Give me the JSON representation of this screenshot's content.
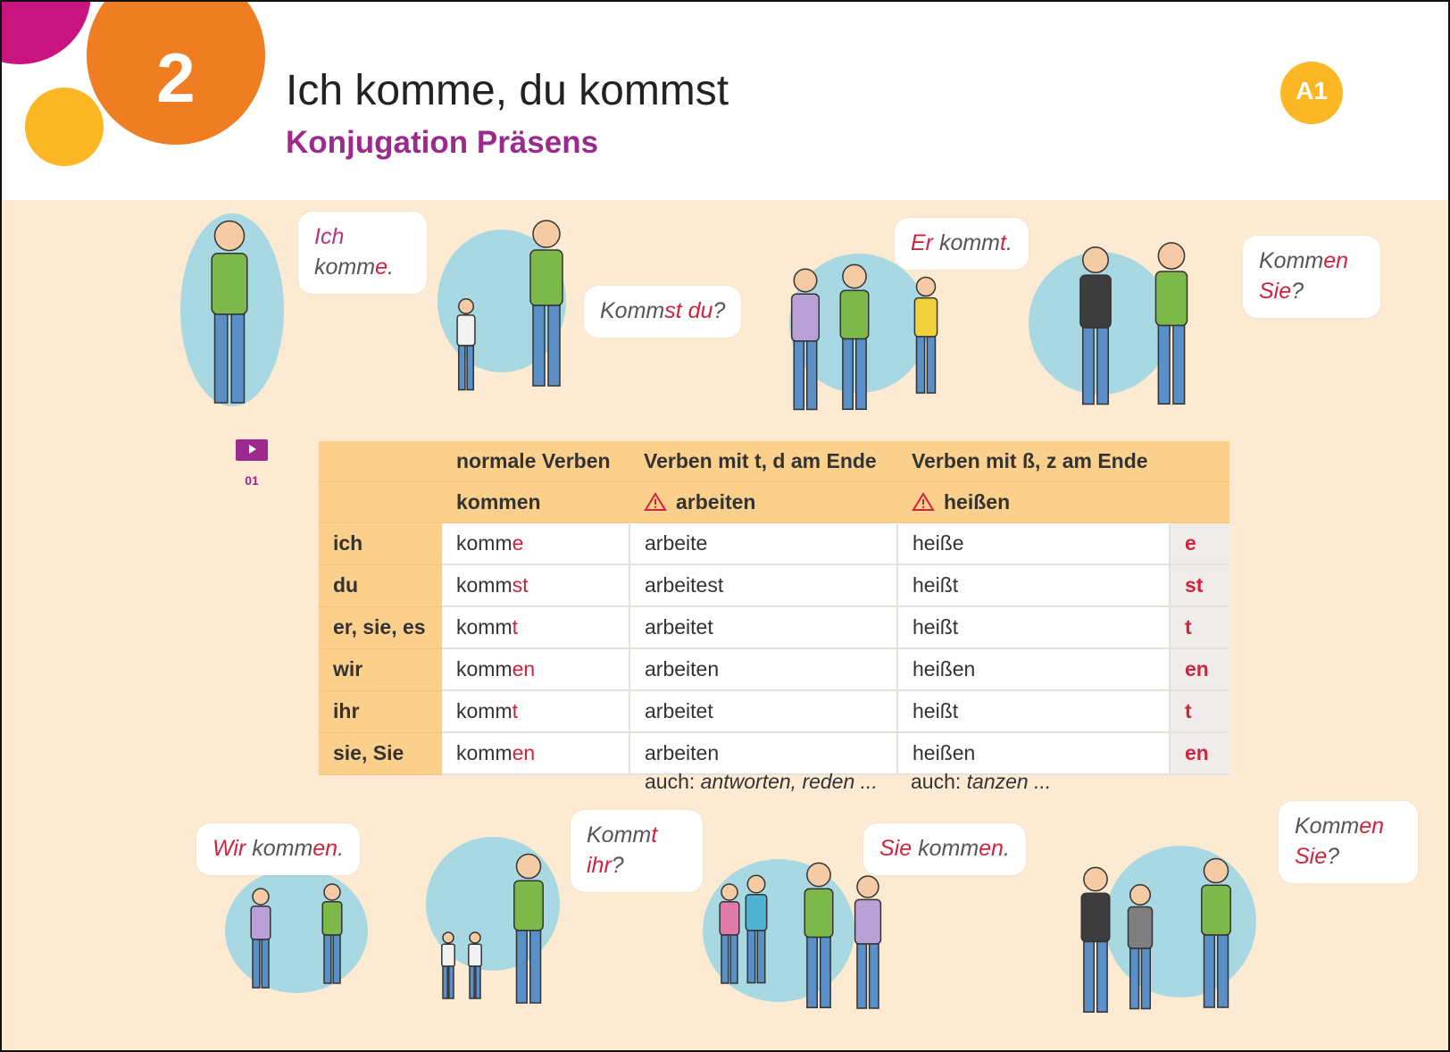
{
  "header": {
    "number": "2",
    "title": "Ich komme, du kommst",
    "subtitle": "Konjugation Präsens",
    "level": "A1"
  },
  "media": {
    "label": "01"
  },
  "bubbles": [
    {
      "parts": [
        {
          "text": "Ich",
          "color": "#b8327f"
        },
        " komm",
        {
          "text": "e",
          "color": "#d0243c"
        },
        "."
      ]
    },
    {
      "parts": [
        "Komm",
        {
          "text": "st",
          "color": "#d0243c"
        },
        " ",
        {
          "text": "du",
          "color": "#d0243c"
        },
        "?"
      ]
    },
    {
      "parts": [
        {
          "text": "Er",
          "color": "#d0243c"
        },
        " komm",
        {
          "text": "t",
          "color": "#d0243c"
        },
        "."
      ]
    },
    {
      "parts": [
        "Komm",
        {
          "text": "en",
          "color": "#d0243c"
        },
        " ",
        {
          "text": "Sie",
          "color": "#d0243c"
        },
        "?"
      ]
    },
    {
      "parts": [
        {
          "text": "Wir",
          "color": "#d0243c"
        },
        " komm",
        {
          "text": "en",
          "color": "#d0243c"
        },
        "."
      ]
    },
    {
      "parts": [
        "Komm",
        {
          "text": "t",
          "color": "#d0243c"
        },
        " ",
        {
          "text": "ihr",
          "color": "#d0243c"
        },
        "?"
      ]
    },
    {
      "parts": [
        {
          "text": "Sie",
          "color": "#d0243c"
        },
        " komm",
        {
          "text": "en",
          "color": "#d0243c"
        },
        "."
      ]
    },
    {
      "parts": [
        "Komm",
        {
          "text": "en",
          "color": "#d0243c"
        },
        " ",
        {
          "text": "Sie",
          "color": "#d0243c"
        },
        "?"
      ]
    }
  ],
  "table": {
    "header": [
      [
        "",
        "normale Verben",
        "Verben mit t, d am Ende",
        "Verben mit ß, z am Ende",
        ""
      ],
      [
        "",
        "kommen",
        "arbeiten",
        "heißen",
        ""
      ]
    ],
    "rows": [
      [
        "ich",
        [
          "komm",
          {
            "text": "e",
            "color": "#d0243c"
          }
        ],
        "arbeite",
        "heiße",
        "e"
      ],
      [
        "du",
        [
          "komm",
          {
            "text": "st",
            "color": "#d0243c"
          }
        ],
        "arbeitest",
        "heißt",
        "st"
      ],
      [
        "er, sie, es",
        [
          "komm",
          {
            "text": "t",
            "color": "#d0243c"
          }
        ],
        "arbeitet",
        "heißt",
        "t"
      ],
      [
        "wir",
        [
          "komm",
          {
            "text": "en",
            "color": "#d0243c"
          }
        ],
        "arbeiten",
        "heißen",
        "en"
      ],
      [
        "ihr",
        [
          "komm",
          {
            "text": "t",
            "color": "#d0243c"
          }
        ],
        "arbeitet",
        "heißt",
        "t"
      ],
      [
        "sie, Sie",
        [
          "komm",
          {
            "text": "en",
            "color": "#d0243c"
          }
        ],
        "arbeiten",
        "heißen",
        "en"
      ]
    ],
    "also": [
      {
        "label": "auch:",
        "words": "antworten, reden ..."
      },
      {
        "label": "auch:",
        "words": "tanzen ..."
      }
    ]
  }
}
